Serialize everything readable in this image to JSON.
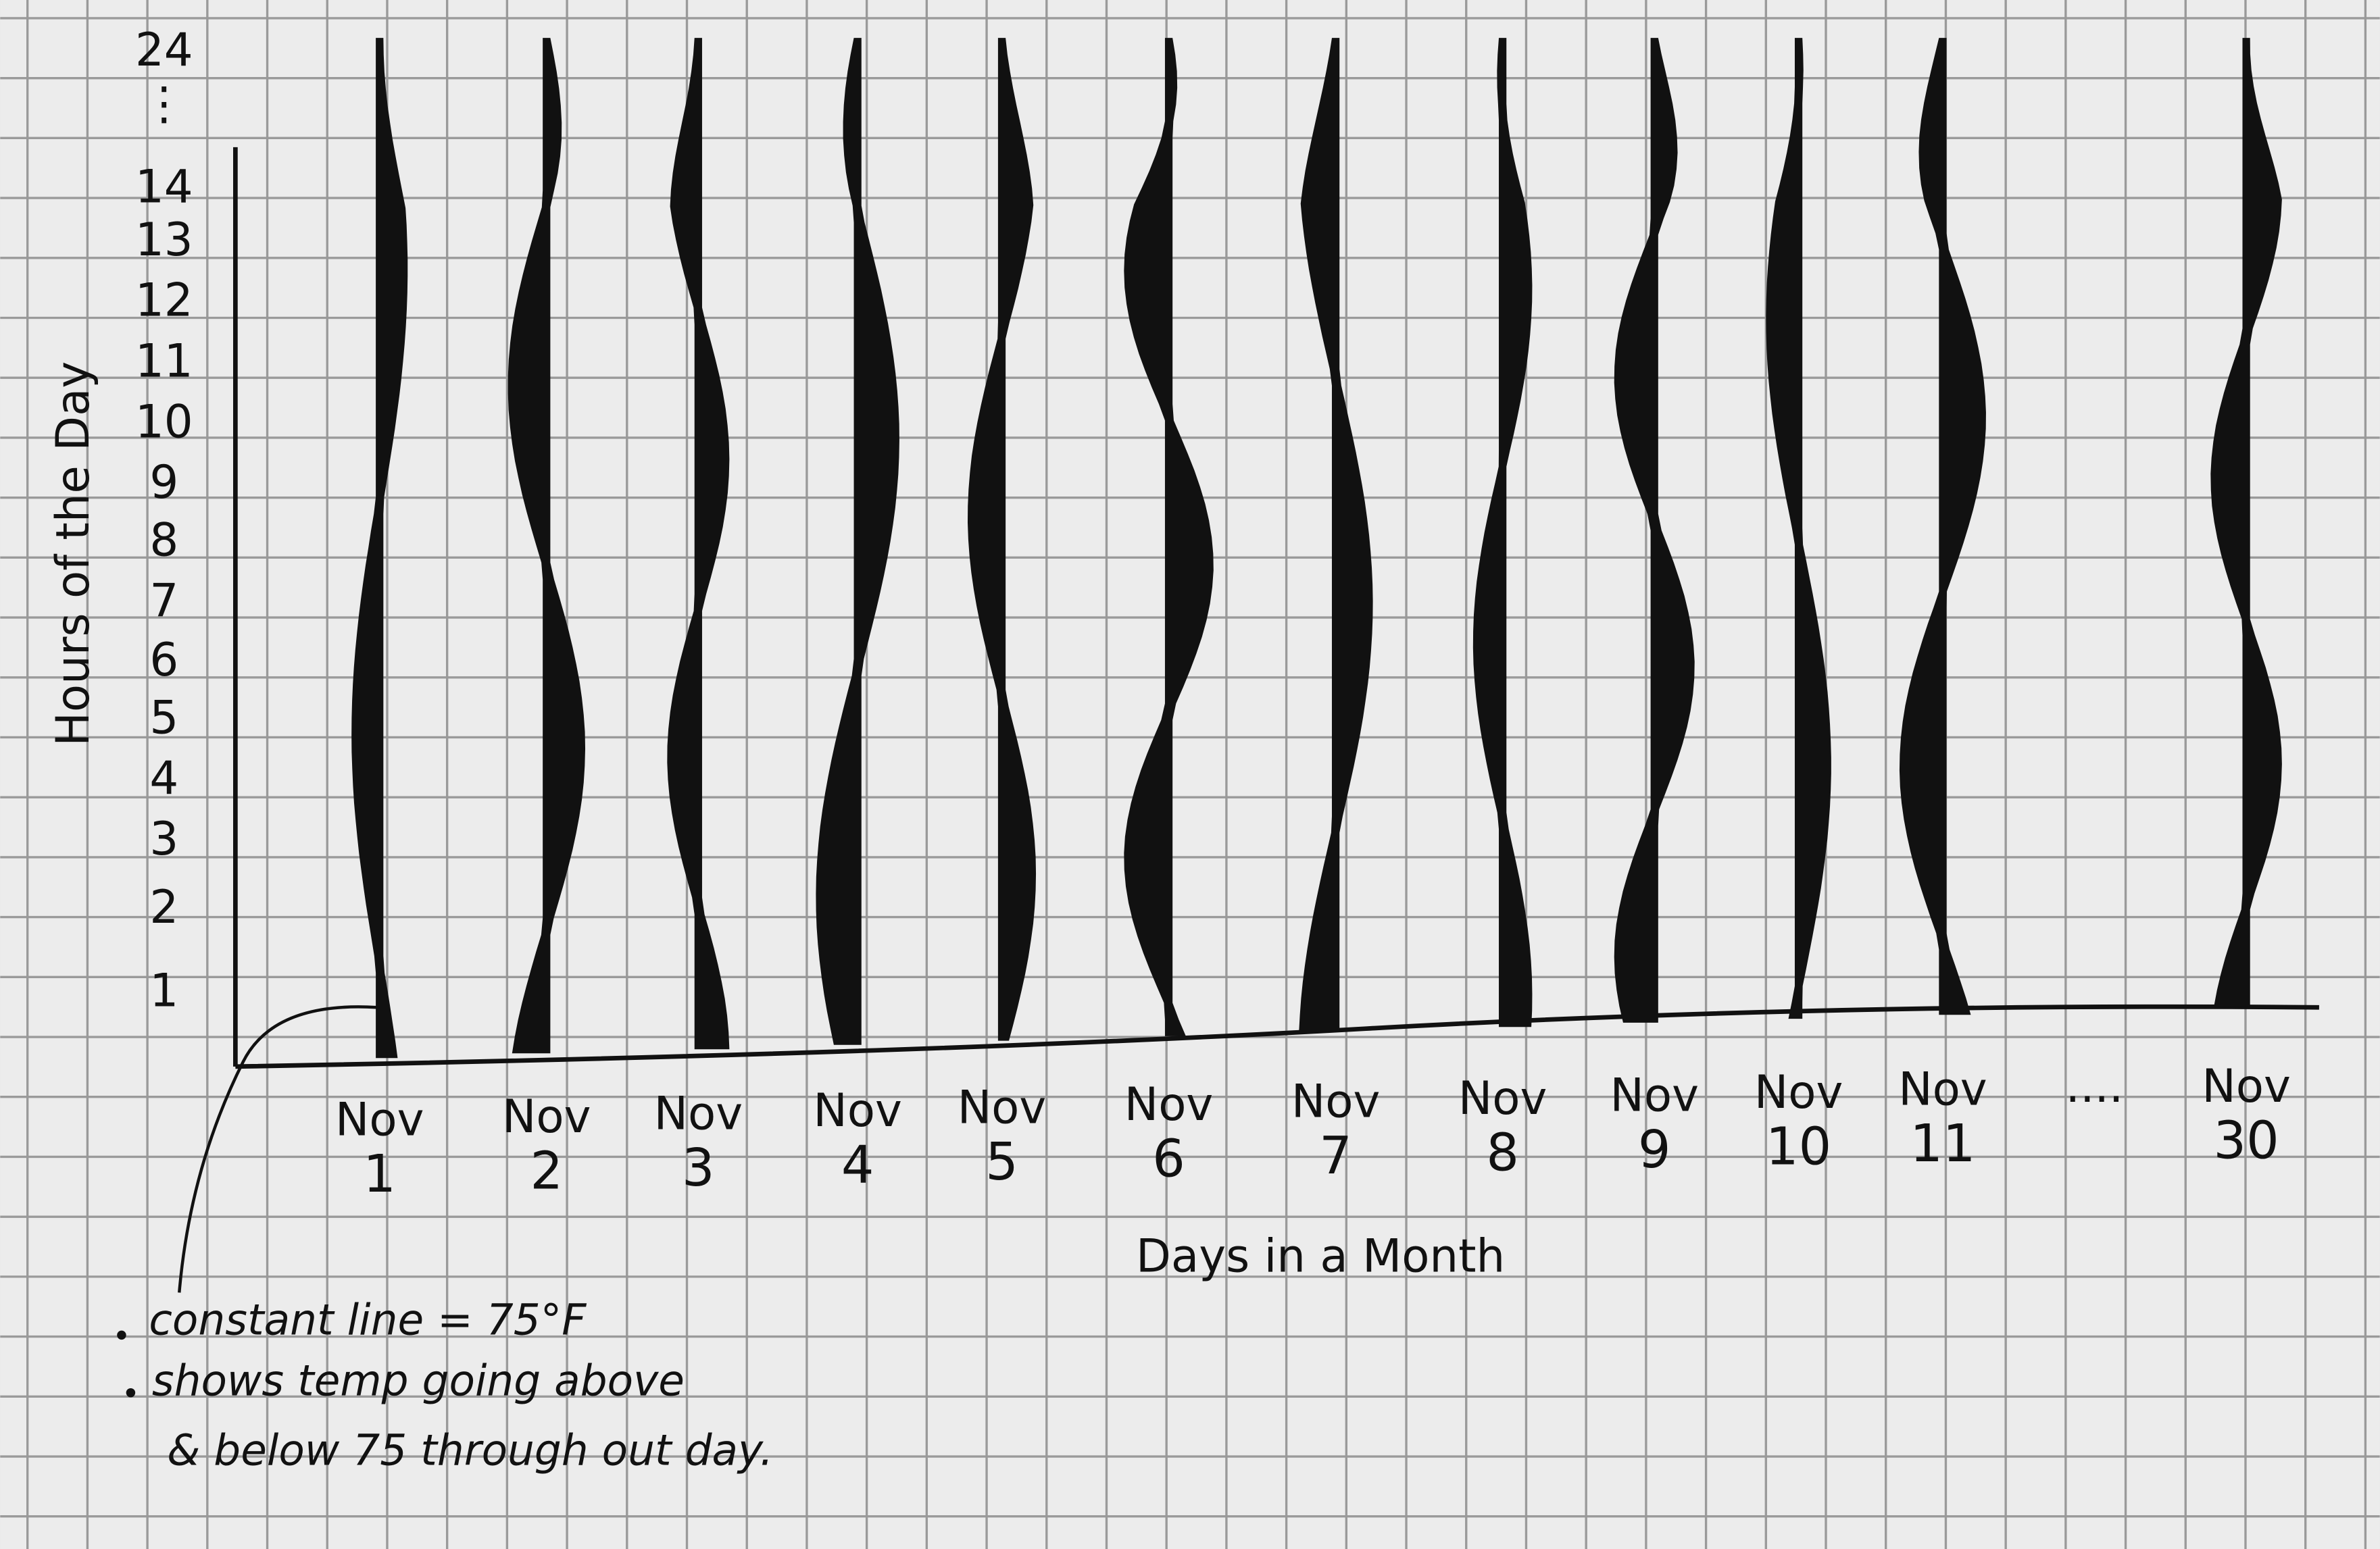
{
  "y_axis": {
    "title": "Hours of the Day",
    "labels": [
      "24",
      "⋮",
      "14",
      "13",
      "12",
      "11",
      "10",
      "9",
      "8",
      "7",
      "6",
      "5",
      "4",
      "3",
      "2",
      "1"
    ]
  },
  "x_axis": {
    "title": "Days in a Month",
    "days": [
      {
        "month": "Nov",
        "day": "1"
      },
      {
        "month": "Nov",
        "day": "2"
      },
      {
        "month": "Nov",
        "day": "3"
      },
      {
        "month": "Nov",
        "day": "4"
      },
      {
        "month": "Nov",
        "day": "5"
      },
      {
        "month": "Nov",
        "day": "6"
      },
      {
        "month": "Nov",
        "day": "7"
      },
      {
        "month": "Nov",
        "day": "8"
      },
      {
        "month": "Nov",
        "day": "9"
      },
      {
        "month": "Nov",
        "day": "10"
      },
      {
        "month": "Nov",
        "day": "11"
      },
      {
        "month": "Nov",
        "day": "30"
      }
    ],
    "gap": "...."
  },
  "notes": [
    "constant line = 75°F",
    "shows temp going above",
    "& below 75 through out day."
  ]
}
